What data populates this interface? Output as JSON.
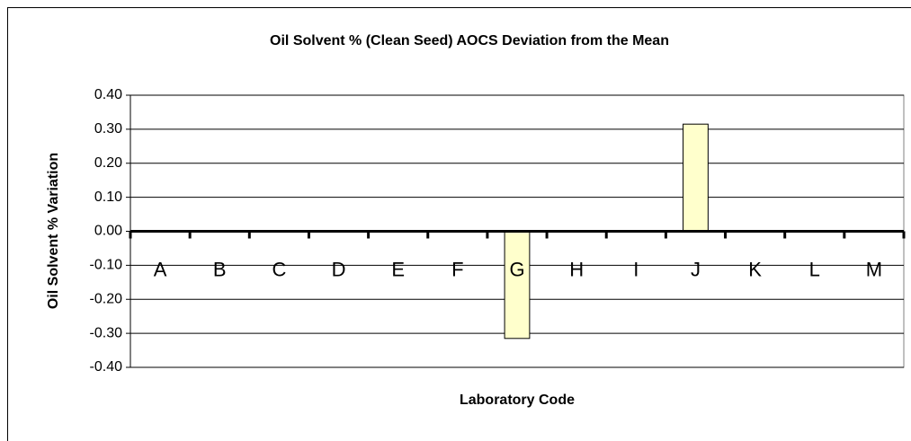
{
  "chart_data": {
    "type": "bar",
    "title": "Oil Solvent % (Clean Seed) AOCS Deviation from the Mean",
    "x_label": "Laboratory Code",
    "y_label": "Oil Solvent % Variation",
    "categories": [
      "A",
      "B",
      "C",
      "D",
      "E",
      "F",
      "G",
      "H",
      "I",
      "J",
      "K",
      "L",
      "M"
    ],
    "values": [
      0,
      0,
      0,
      0,
      0,
      0,
      -0.315,
      0,
      0,
      0.315,
      0,
      0,
      0
    ],
    "color": "#ffffcc",
    "ylim": [
      -0.4,
      0.4
    ],
    "yticks": [
      {
        "value": -0.4,
        "label": "-0.40"
      },
      {
        "value": -0.3,
        "label": "-0.30"
      },
      {
        "value": -0.2,
        "label": "-0.20"
      },
      {
        "value": -0.1,
        "label": "-0.10"
      },
      {
        "value": 0,
        "label": "0.00"
      },
      {
        "value": 0.1,
        "label": "0.10"
      },
      {
        "value": 0.2,
        "label": "0.20"
      },
      {
        "value": 0.3,
        "label": "0.30"
      },
      {
        "value": 0.4,
        "label": "0.40"
      }
    ],
    "grid": true
  }
}
